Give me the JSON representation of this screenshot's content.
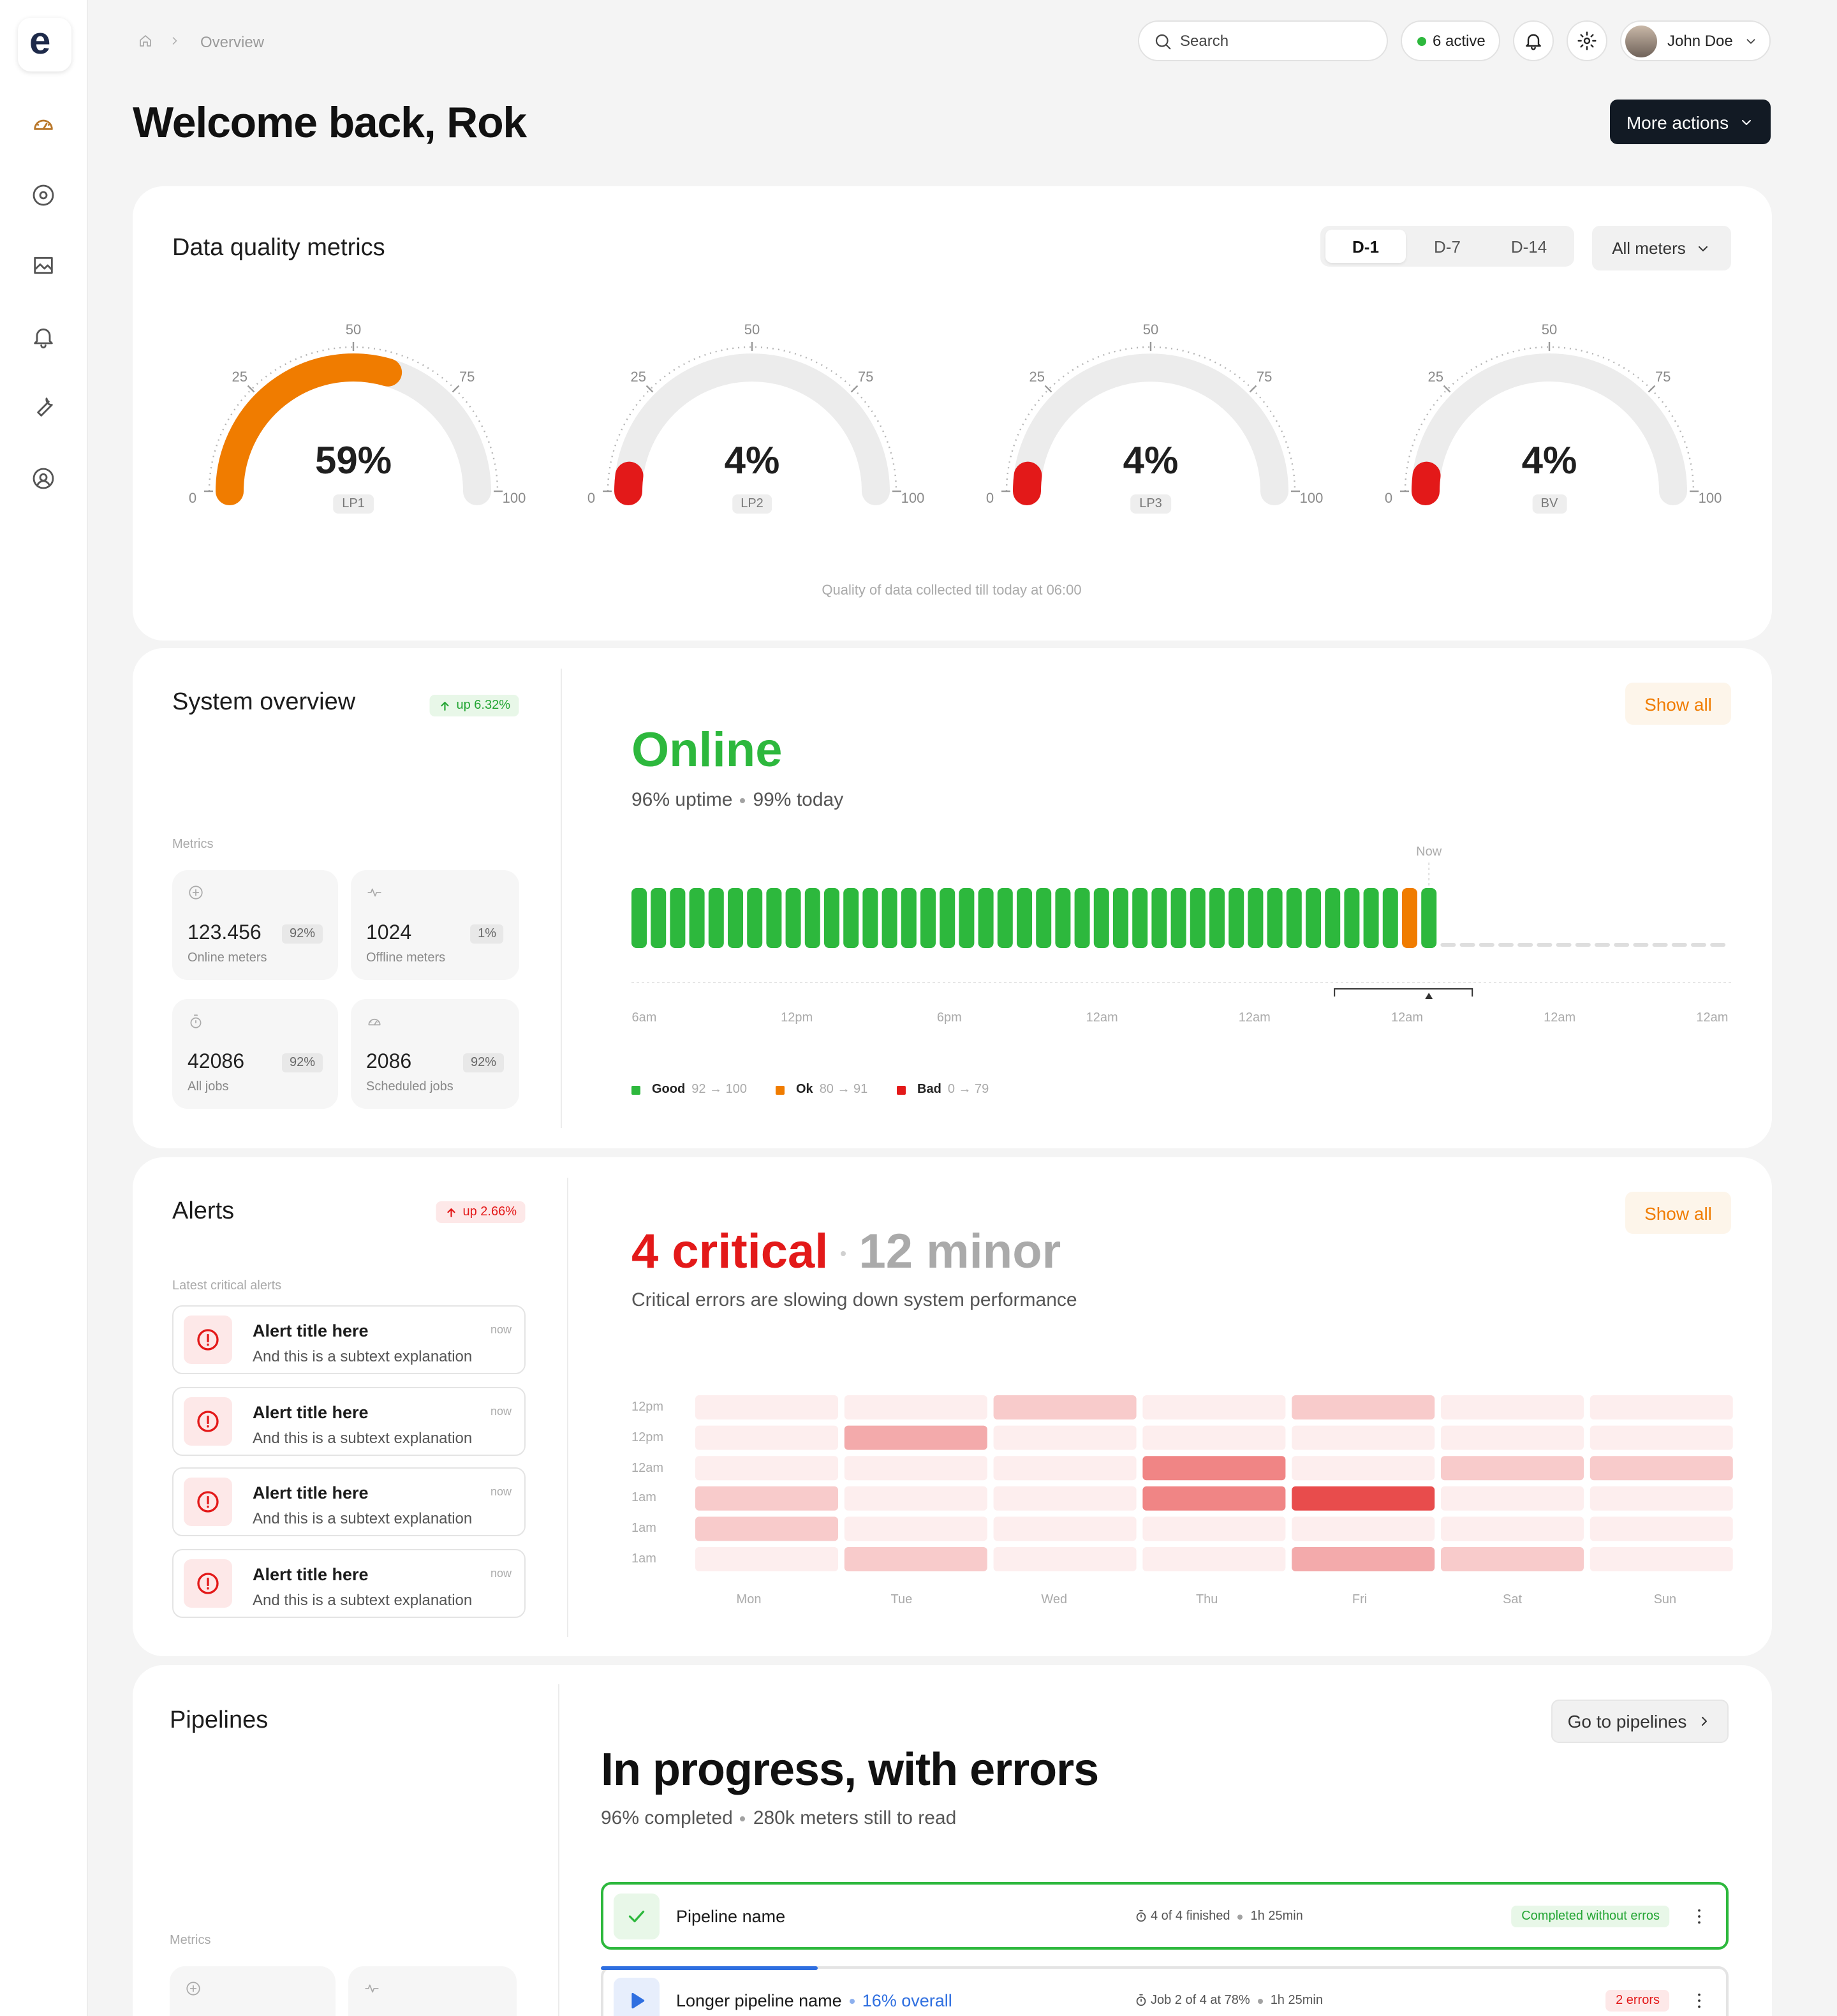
{
  "sidebar": {
    "logo": "e"
  },
  "breadcrumb": {
    "current": "Overview"
  },
  "header": {
    "search_placeholder": "Search",
    "status": "6 active",
    "user": "John Doe",
    "title": "Welcome back, Rok",
    "actions_button": "More actions"
  },
  "data_quality": {
    "title": "Data quality metrics",
    "tabs": [
      "D-1",
      "D-7",
      "D-14"
    ],
    "active_tab": 0,
    "filter": "All meters",
    "footnote": "Quality of data collected till today at 06:00",
    "chart_data": {
      "type": "gauge",
      "categories": [
        "LP1",
        "LP2",
        "LP3",
        "BV"
      ],
      "values": [
        59,
        4,
        4,
        4
      ],
      "value_labels": [
        "59%",
        "4%",
        "4%",
        "4%"
      ],
      "colors": [
        "#f07c00",
        "#e31919",
        "#e31919",
        "#e31919"
      ],
      "ylim": [
        0,
        100
      ],
      "yticks": [
        0,
        25,
        50,
        75,
        100
      ]
    }
  },
  "system_overview": {
    "title": "System overview",
    "badge": "up 6.32%",
    "metrics_label": "Metrics",
    "metrics": [
      {
        "value": "123.456",
        "share": "92%",
        "label": "Online meters"
      },
      {
        "value": "1024",
        "share": "1%",
        "label": "Offline meters"
      },
      {
        "value": "42086",
        "share": "92%",
        "label": "All jobs"
      },
      {
        "value": "2086",
        "share": "92%",
        "label": "Scheduled jobs"
      }
    ],
    "status": "Online",
    "uptime": "96% uptime",
    "today": "99% today",
    "show_all": "Show all",
    "chart_data": {
      "type": "status-bars",
      "now_label": "Now",
      "colors": [
        "#2db83d",
        "#2db83d",
        "#2db83d",
        "#2db83d",
        "#2db83d",
        "#2db83d",
        "#2db83d",
        "#2db83d",
        "#2db83d",
        "#2db83d",
        "#2db83d",
        "#2db83d",
        "#2db83d",
        "#2db83d",
        "#2db83d",
        "#2db83d",
        "#2db83d",
        "#2db83d",
        "#2db83d",
        "#2db83d",
        "#2db83d",
        "#2db83d",
        "#2db83d",
        "#2db83d",
        "#2db83d",
        "#2db83d",
        "#2db83d",
        "#2db83d",
        "#2db83d",
        "#2db83d",
        "#2db83d",
        "#2db83d",
        "#2db83d",
        "#2db83d",
        "#2db83d",
        "#2db83d",
        "#2db83d",
        "#2db83d",
        "#2db83d",
        "#2db83d",
        "#f07c00",
        "#2db83d",
        null,
        null,
        null,
        null,
        null,
        null,
        null,
        null,
        null,
        null,
        null,
        null,
        null,
        null,
        null
      ],
      "x_labels": [
        "6am",
        "12pm",
        "6pm",
        "12am",
        "12am",
        "12am",
        "12am",
        "12am"
      ],
      "legend": [
        {
          "name": "Good",
          "range": "92 → 100",
          "color": "#2db83d"
        },
        {
          "name": "Ok",
          "range": "80 → 91",
          "color": "#f07c00"
        },
        {
          "name": "Bad",
          "range": "0 → 79",
          "color": "#e31919"
        }
      ]
    }
  },
  "alerts": {
    "title": "Alerts",
    "badge": "up 2.66%",
    "list_label": "Latest critical alerts",
    "items": [
      {
        "title": "Alert title here",
        "subtitle": "And this is a subtext explanation",
        "time": "now"
      },
      {
        "title": "Alert title here",
        "subtitle": "And this is a subtext explanation",
        "time": "now"
      },
      {
        "title": "Alert title here",
        "subtitle": "And this is a subtext explanation",
        "time": "now"
      },
      {
        "title": "Alert title here",
        "subtitle": "And this is a subtext explanation",
        "time": "now"
      }
    ],
    "critical": "4 critical",
    "minor": "12 minor",
    "summary": "Critical errors are slowing down system performance",
    "show_all": "Show all",
    "chart_data": {
      "type": "heatmap",
      "rows": [
        "12pm",
        "12pm",
        "12am",
        "1am",
        "1am",
        "1am"
      ],
      "columns": [
        "Mon",
        "Tue",
        "Wed",
        "Thu",
        "Fri",
        "Sat",
        "Sun"
      ],
      "values": [
        [
          0,
          0,
          1,
          0,
          1,
          0,
          0
        ],
        [
          0,
          2,
          0,
          0,
          0,
          0,
          0
        ],
        [
          0,
          0,
          0,
          3,
          0,
          1,
          1
        ],
        [
          1,
          0,
          0,
          3,
          4,
          0,
          0
        ],
        [
          1,
          0,
          0,
          0,
          0,
          0,
          0
        ],
        [
          0,
          1,
          0,
          0,
          2,
          1,
          0
        ]
      ],
      "scale_colors": [
        "#fdeeee",
        "#f8cbcb",
        "#f3aaab",
        "#f08585",
        "#e84c4c"
      ]
    }
  },
  "pipelines": {
    "title": "Pipelines",
    "metrics_label": "Metrics",
    "link": "Go to pipelines",
    "headline": "In progress, with errors",
    "completed": "96% completed",
    "remaining": "280k meters still to read",
    "items": [
      {
        "name": "Pipeline name",
        "progress": "4 of 4 finished",
        "duration": "1h 25min",
        "status": "Completed without erros",
        "color": "#2db83d"
      },
      {
        "name": "Longer pipeline name",
        "overall": "16% overall",
        "progress": "Job 2 of 4 at 78%",
        "duration": "1h 25min",
        "status": "2 errors",
        "color": "#2f6fe0"
      }
    ]
  }
}
